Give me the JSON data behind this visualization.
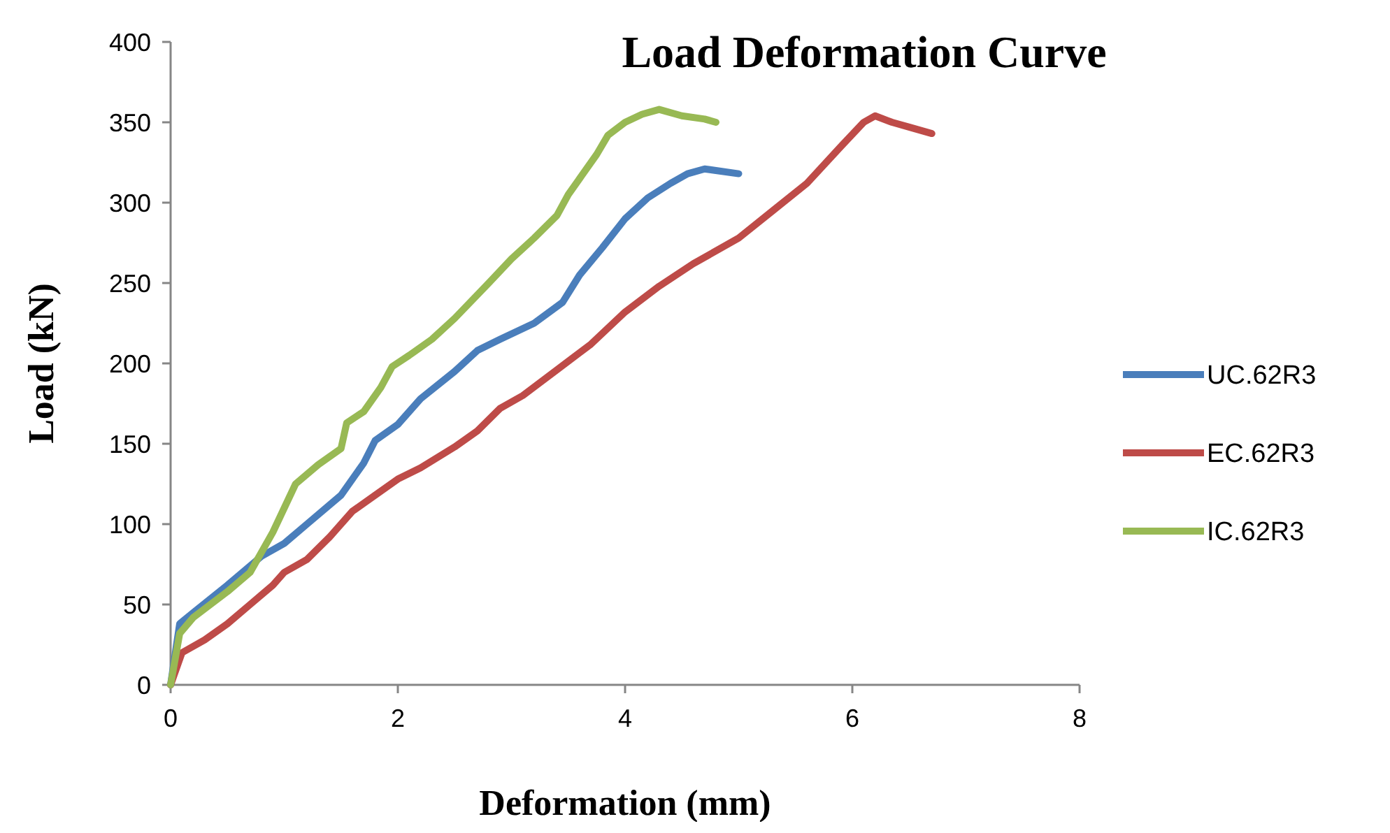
{
  "chart_data": {
    "type": "line",
    "title": "Load Deformation Curve",
    "xlabel": "Deformation (mm)",
    "ylabel": "Load (kN)",
    "xlim": [
      0,
      8
    ],
    "xticks": [
      0,
      2,
      4,
      6,
      8
    ],
    "ylim": [
      0,
      400
    ],
    "yticks": [
      0,
      50,
      100,
      150,
      200,
      250,
      300,
      350,
      400
    ],
    "grid": false,
    "legend": "right",
    "marker": "none",
    "line_style": "solid",
    "series": [
      {
        "name": "UC.62R3",
        "color": "#4a7ebb",
        "x": [
          0,
          0.08,
          0.2,
          0.5,
          0.8,
          1.0,
          1.2,
          1.5,
          1.7,
          1.8,
          2.0,
          2.2,
          2.5,
          2.7,
          2.9,
          3.2,
          3.45,
          3.6,
          3.8,
          4.0,
          4.2,
          4.4,
          4.55,
          4.7,
          5.0
        ],
        "values": [
          0,
          38,
          45,
          62,
          80,
          88,
          100,
          118,
          138,
          152,
          162,
          178,
          195,
          208,
          215,
          225,
          238,
          255,
          272,
          290,
          303,
          312,
          318,
          321,
          318
        ]
      },
      {
        "name": "EC.62R3",
        "color": "#be4b48",
        "x": [
          0,
          0.1,
          0.3,
          0.5,
          0.7,
          0.9,
          1.0,
          1.2,
          1.4,
          1.6,
          1.8,
          2.0,
          2.2,
          2.5,
          2.7,
          2.9,
          3.1,
          3.4,
          3.7,
          4.0,
          4.3,
          4.6,
          5.0,
          5.3,
          5.6,
          5.9,
          6.1,
          6.2,
          6.35,
          6.5,
          6.7
        ],
        "values": [
          0,
          20,
          28,
          38,
          50,
          62,
          70,
          78,
          92,
          108,
          118,
          128,
          135,
          148,
          158,
          172,
          180,
          196,
          212,
          232,
          248,
          262,
          278,
          295,
          312,
          335,
          350,
          354,
          350,
          347,
          343
        ]
      },
      {
        "name": "IC.62R3",
        "color": "#98b954",
        "x": [
          0,
          0.08,
          0.2,
          0.5,
          0.7,
          0.9,
          1.0,
          1.1,
          1.3,
          1.5,
          1.55,
          1.7,
          1.85,
          1.95,
          2.1,
          2.3,
          2.5,
          2.8,
          3.0,
          3.2,
          3.4,
          3.5,
          3.6,
          3.75,
          3.85,
          4.0,
          4.15,
          4.3,
          4.5,
          4.7,
          4.8
        ],
        "values": [
          0,
          32,
          42,
          58,
          70,
          95,
          110,
          125,
          137,
          147,
          163,
          170,
          185,
          198,
          205,
          215,
          228,
          250,
          265,
          278,
          292,
          305,
          315,
          330,
          342,
          350,
          355,
          358,
          354,
          352,
          350
        ]
      }
    ]
  }
}
